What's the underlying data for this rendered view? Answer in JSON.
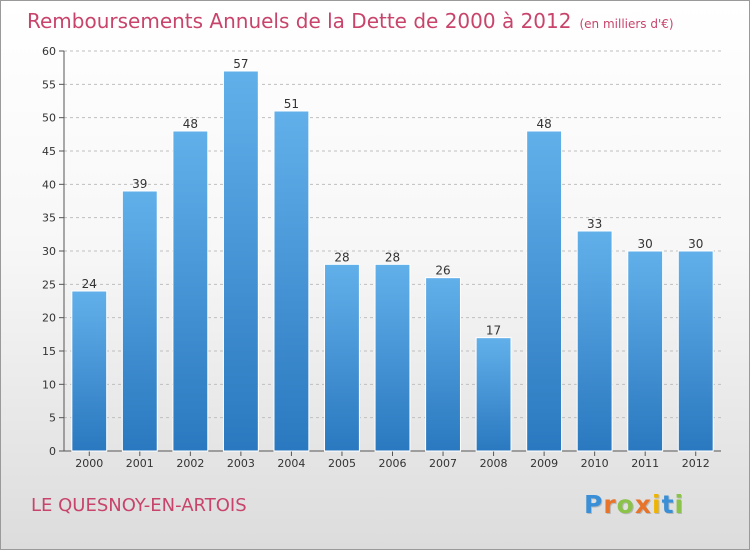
{
  "header": {
    "title": "Remboursements Annuels de la Dette de 2000 à 2012",
    "subtitle": "(en milliers d'€)"
  },
  "footer": {
    "place": "LE QUESNOY-EN-ARTOIS",
    "logo_letters": [
      "P",
      "r",
      "o",
      "x",
      "i",
      "t",
      "i"
    ],
    "logo_colors": [
      "#3a8fd6",
      "#e8742a",
      "#8bc34a",
      "#e8742a",
      "#f0b400",
      "#3a8fd6",
      "#8bc34a"
    ]
  },
  "colors": {
    "bar_light": "#62b0ea",
    "bar_dark": "#2a78bf",
    "grid": "#bfbfbf",
    "axis": "#555555"
  },
  "chart_data": {
    "type": "bar",
    "categories": [
      "2000",
      "2001",
      "2002",
      "2003",
      "2004",
      "2005",
      "2006",
      "2007",
      "2008",
      "2009",
      "2010",
      "2011",
      "2012"
    ],
    "values": [
      24,
      39,
      48,
      57,
      51,
      28,
      28,
      26,
      17,
      48,
      33,
      30,
      30
    ],
    "data_labels": [
      "24",
      "39",
      "48",
      "57",
      "51",
      "28",
      "28",
      "26",
      "17",
      "48",
      "33",
      "30",
      "30"
    ],
    "yticks": [
      0,
      5,
      10,
      15,
      20,
      25,
      30,
      35,
      40,
      45,
      50,
      55,
      60
    ],
    "ylim": [
      0,
      60
    ],
    "grid": true,
    "title": "Remboursements Annuels de la Dette de 2000 à 2012",
    "subtitle": "(en milliers d'€)"
  }
}
